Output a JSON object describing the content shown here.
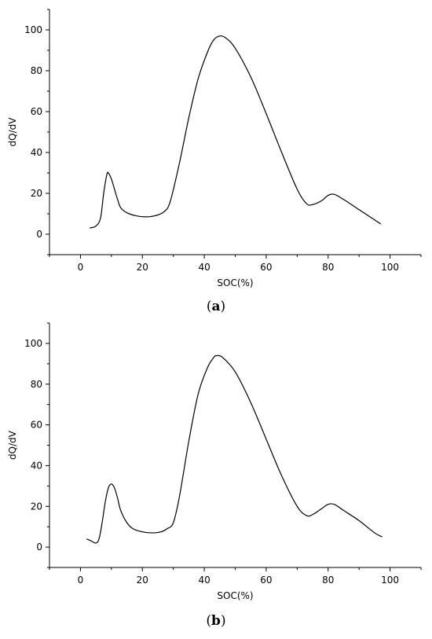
{
  "chart_data": [
    {
      "type": "line",
      "caption": "a",
      "xlabel": "SOC(%)",
      "ylabel": "dQ/dV",
      "xlim": [
        -10,
        110
      ],
      "ylim": [
        -10,
        110
      ],
      "x_ticks": [
        0,
        20,
        40,
        60,
        80,
        100
      ],
      "y_ticks": [
        0,
        20,
        40,
        60,
        80,
        100
      ],
      "series": [
        {
          "x": [
            3,
            5,
            6.5,
            7.5,
            8.5,
            9,
            10,
            11,
            12,
            13,
            15,
            18,
            21,
            24,
            27,
            29,
            32,
            35,
            38,
            41,
            43,
            45,
            47,
            50,
            55,
            60,
            65,
            70,
            73,
            75,
            78,
            80,
            82,
            85,
            90,
            95,
            97
          ],
          "y": [
            3,
            4,
            8,
            20,
            29,
            30,
            27,
            22,
            17,
            13,
            10.5,
            9,
            8.5,
            9,
            11,
            16,
            35,
            57,
            76,
            89,
            95,
            97,
            96,
            91,
            77,
            59,
            40,
            22,
            15,
            14.5,
            16.5,
            19,
            19.5,
            17,
            12,
            7,
            5
          ]
        }
      ]
    },
    {
      "type": "line",
      "caption": "b",
      "xlabel": "SOC(%)",
      "ylabel": "dQ/dV",
      "xlim": [
        -10,
        110
      ],
      "ylim": [
        -10,
        110
      ],
      "x_ticks": [
        0,
        20,
        40,
        60,
        80,
        100
      ],
      "y_ticks": [
        0,
        20,
        40,
        60,
        80,
        100
      ],
      "series": [
        {
          "x": [
            2,
            3.5,
            5,
            6,
            7,
            8,
            9,
            10,
            11,
            12,
            13,
            15,
            17,
            20,
            23,
            26,
            28,
            30,
            32,
            35,
            38,
            41,
            43,
            44,
            46,
            50,
            55,
            60,
            65,
            70,
            73,
            75,
            78,
            80,
            82,
            85,
            90,
            95,
            97.5
          ],
          "y": [
            4,
            3,
            2,
            4,
            12,
            22,
            29,
            31,
            29,
            24,
            18,
            12,
            9,
            7.5,
            7,
            7.5,
            9,
            12,
            25,
            52,
            75,
            88,
            93,
            94,
            93,
            86,
            71,
            53,
            35,
            20,
            15.5,
            16,
            19,
            21,
            21,
            18,
            13,
            7,
            5
          ]
        }
      ]
    }
  ]
}
